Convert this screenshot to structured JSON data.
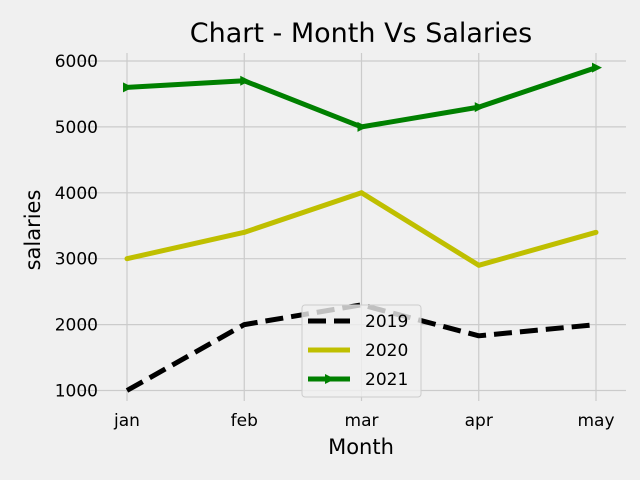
{
  "chart_data": {
    "type": "line",
    "title": "Chart - Month Vs Salaries",
    "xlabel": "Month",
    "ylabel": "salaries",
    "categories": [
      "jan",
      "feb",
      "mar",
      "apr",
      "may"
    ],
    "ylim": [
      900,
      6100
    ],
    "yticks": [
      1000,
      2000,
      3000,
      4000,
      5000,
      6000
    ],
    "grid": true,
    "legend_position": "lower-center",
    "series": [
      {
        "name": "2019",
        "values": [
          1000,
          2000,
          2300,
          1830,
          2000
        ],
        "color": "#000000",
        "style": "dashed",
        "marker": "none"
      },
      {
        "name": "2020",
        "values": [
          3000,
          3400,
          4000,
          2900,
          3400
        ],
        "color": "#bfbf00",
        "style": "solid",
        "marker": "point"
      },
      {
        "name": "2021",
        "values": [
          5600,
          5700,
          5000,
          5300,
          5900
        ],
        "color": "#008000",
        "style": "solid",
        "marker": "triangle-right"
      }
    ],
    "background": "#f0f0f0"
  }
}
